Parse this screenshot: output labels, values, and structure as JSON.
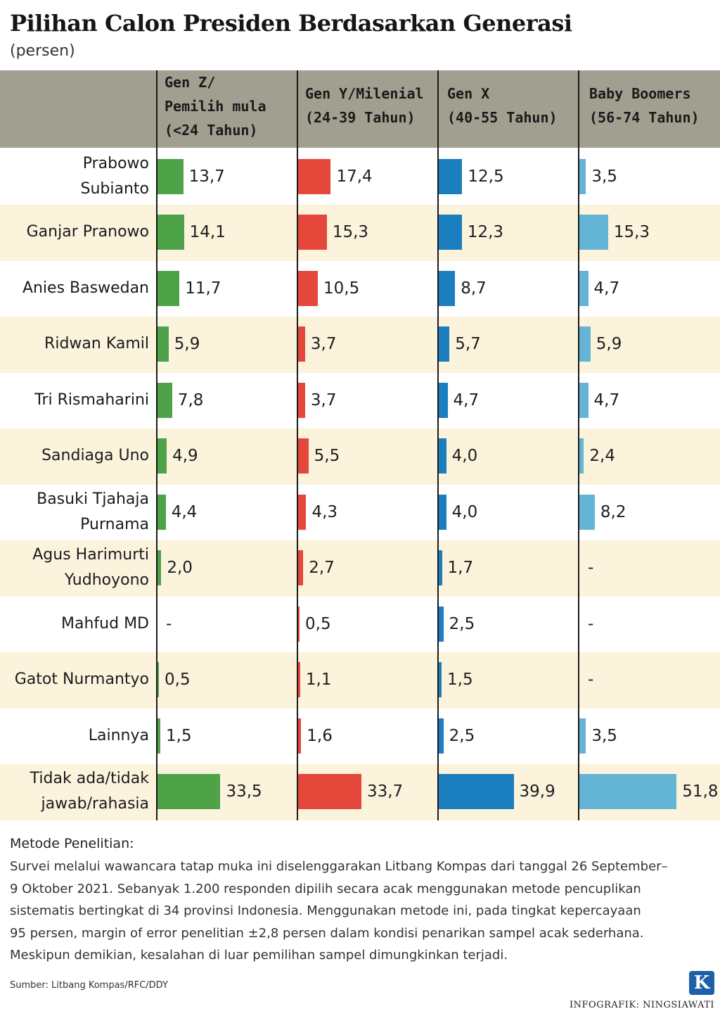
{
  "title": "Pilihan Calon Presiden Berdasarkan Generasi",
  "subtitle": "(persen)",
  "columns": [
    {
      "id": "genz",
      "label_lines": [
        "Gen Z/",
        "Pemilih mula",
        "(<24 Tahun)"
      ],
      "color": "#4ea247"
    },
    {
      "id": "geny",
      "label_lines": [
        "Gen Y/Milenial",
        "(24-39 Tahun)"
      ],
      "color": "#e5473a"
    },
    {
      "id": "genx",
      "label_lines": [
        "Gen X",
        "(40-55 Tahun)"
      ],
      "color": "#1b7ebf"
    },
    {
      "id": "boomers",
      "label_lines": [
        "Baby Boomers",
        "(56-74 Tahun)"
      ],
      "color": "#64b4d6"
    }
  ],
  "chart_data": {
    "type": "bar",
    "orientation": "horizontal",
    "unit": "persen",
    "categories": [
      "Prabowo Subianto",
      "Ganjar Pranowo",
      "Anies Baswedan",
      "Ridwan Kamil",
      "Tri Rismaharini",
      "Sandiaga Uno",
      "Basuki Tjahaja Purnama",
      "Agus Harimurti Yudhoyono",
      "Mahfud MD",
      "Gatot Nurmantyo",
      "Lainnya",
      "Tidak ada/tidak jawab/rahasia"
    ],
    "category_lines": [
      [
        "Prabowo",
        "Subianto"
      ],
      [
        "Ganjar Pranowo"
      ],
      [
        "Anies Baswedan"
      ],
      [
        "Ridwan Kamil"
      ],
      [
        "Tri Rismaharini"
      ],
      [
        "Sandiaga Uno"
      ],
      [
        "Basuki Tjahaja",
        "Purnama"
      ],
      [
        "Agus Harimurti",
        "Yudhoyono"
      ],
      [
        "Mahfud MD"
      ],
      [
        "Gatot Nurmantyo"
      ],
      [
        "Lainnya"
      ],
      [
        "Tidak ada/tidak",
        "jawab/rahasia"
      ]
    ],
    "series": [
      {
        "name": "Gen Z/Pemilih mula (<24 Tahun)",
        "values": [
          13.7,
          14.1,
          11.7,
          5.9,
          7.8,
          4.9,
          4.4,
          2.0,
          null,
          0.5,
          1.5,
          33.5
        ],
        "labels": [
          "13,7",
          "14,1",
          "11,7",
          "5,9",
          "7,8",
          "4,9",
          "4,4",
          "2,0",
          "-",
          "0,5",
          "1,5",
          "33,5"
        ]
      },
      {
        "name": "Gen Y/Milenial (24-39 Tahun)",
        "values": [
          17.4,
          15.3,
          10.5,
          3.7,
          3.7,
          5.5,
          4.3,
          2.7,
          0.5,
          1.1,
          1.6,
          33.7
        ],
        "labels": [
          "17,4",
          "15,3",
          "10,5",
          "3,7",
          "3,7",
          "5,5",
          "4,3",
          "2,7",
          "0,5",
          "1,1",
          "1,6",
          "33,7"
        ]
      },
      {
        "name": "Gen X (40-55 Tahun)",
        "values": [
          12.5,
          12.3,
          8.7,
          5.7,
          4.7,
          4.0,
          4.0,
          1.7,
          2.5,
          1.5,
          2.5,
          39.9
        ],
        "labels": [
          "12,5",
          "12,3",
          "8,7",
          "5,7",
          "4,7",
          "4,0",
          "4,0",
          "1,7",
          "2,5",
          "1,5",
          "2,5",
          "39,9"
        ]
      },
      {
        "name": "Baby Boomers (56-74 Tahun)",
        "values": [
          3.5,
          15.3,
          4.7,
          5.9,
          4.7,
          2.4,
          8.2,
          null,
          null,
          null,
          3.5,
          51.8
        ],
        "labels": [
          "3,5",
          "15,3",
          "4,7",
          "5,9",
          "4,7",
          "2,4",
          "8,2",
          "-",
          "-",
          "-",
          "3,5",
          "51,8"
        ]
      }
    ]
  },
  "notes": {
    "heading": "Metode Penelitian:",
    "lines": [
      "Survei melalui wawancara tatap muka ini diselenggarakan Litbang Kompas dari tanggal 26 September–",
      "9 Oktober 2021. Sebanyak 1.200 responden dipilih secara acak menggunakan metode pencuplikan",
      "sistematis bertingkat di 34 provinsi Indonesia. Menggunakan metode ini, pada tingkat kepercayaan",
      "95 persen, margin of error penelitian ±2,8 persen dalam kondisi penarikan sampel acak sederhana.",
      "Meskipun demikian, kesalahan di luar pemilihan sampel dimungkinkan terjadi."
    ]
  },
  "source": "Sumber: Litbang Kompas/RFC/DDY",
  "logo_letter": "K",
  "credit": "INFOGRAFIK: NINGSIAWATI"
}
